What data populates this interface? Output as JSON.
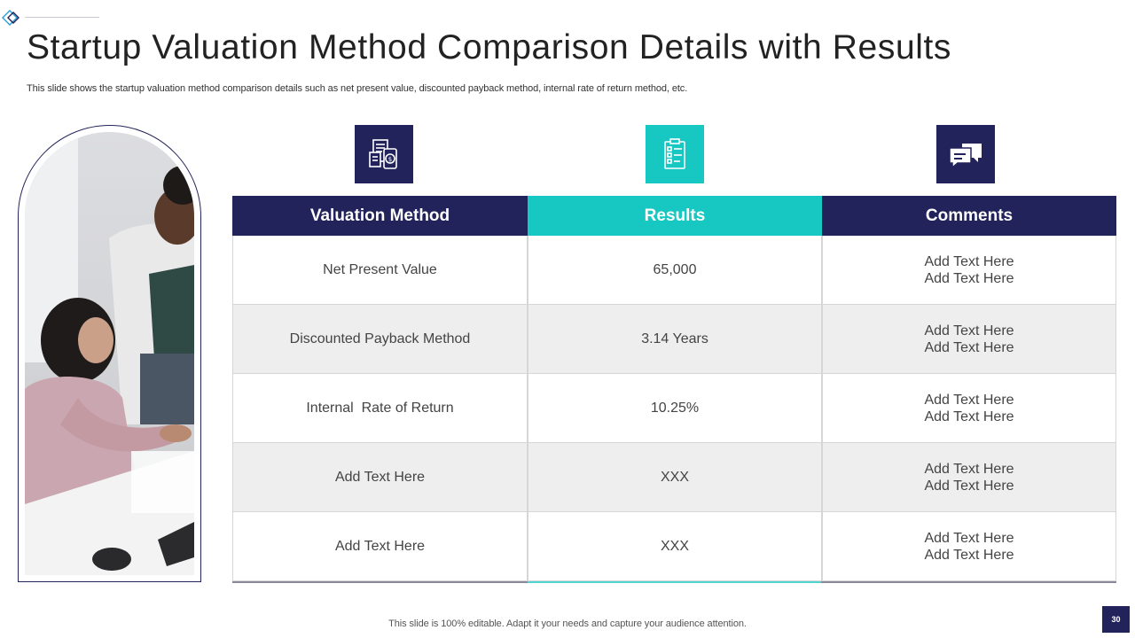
{
  "title": "Startup Valuation Method Comparison Details with Results",
  "subtitle": "This slide shows the startup valuation method comparison details such as net present value, discounted payback method, internal rate of return method, etc.",
  "icons": [
    "document-money-icon",
    "checklist-clipboard-icon",
    "chat-bubbles-icon"
  ],
  "table": {
    "headers": [
      "Valuation Method",
      "Results",
      "Comments"
    ],
    "rows": [
      {
        "method": "Net Present Value",
        "result": "65,000",
        "comment1": "Add Text Here",
        "comment2": "Add Text Here"
      },
      {
        "method": "Discounted Payback Method",
        "result": "3.14 Years",
        "comment1": "Add Text Here",
        "comment2": "Add Text Here"
      },
      {
        "method": "Internal  Rate of Return",
        "result": "10.25%",
        "comment1": "Add Text Here",
        "comment2": "Add Text Here"
      },
      {
        "method": "Add Text Here",
        "result": "XXX",
        "comment1": "Add Text Here",
        "comment2": "Add Text Here"
      },
      {
        "method": "Add Text Here",
        "result": "XXX",
        "comment1": "Add Text Here",
        "comment2": "Add Text Here"
      }
    ]
  },
  "footer": "This slide is 100% editable. Adapt it your needs and capture your audience attention.",
  "page_number": "30",
  "colors": {
    "navy": "#23235b",
    "teal": "#17c7c1",
    "alt_row": "#eeeeee"
  }
}
